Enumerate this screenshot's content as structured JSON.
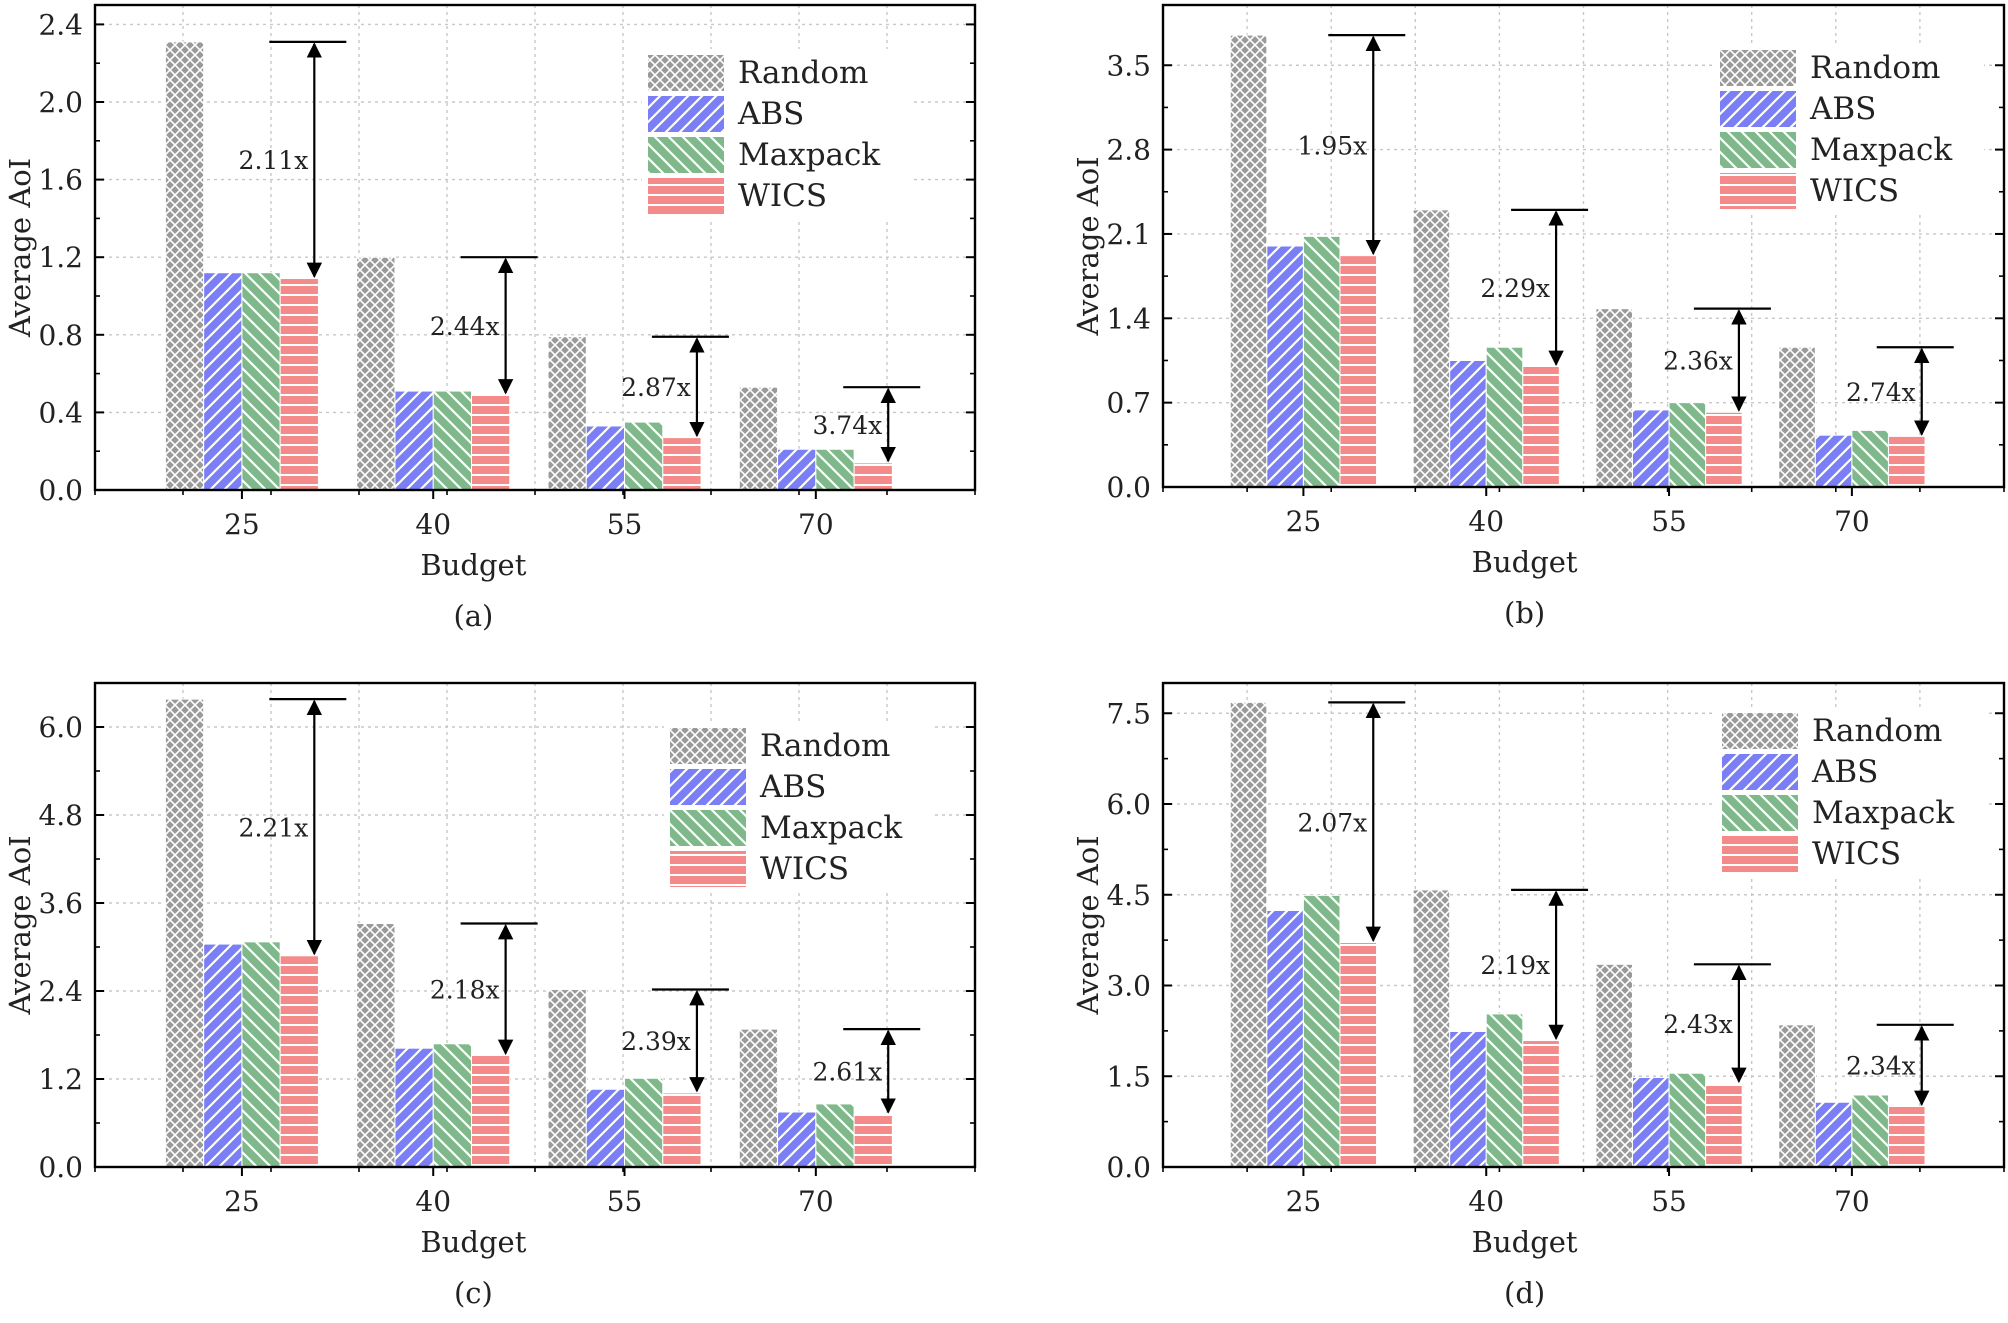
{
  "chart_data": [
    {
      "type": "bar",
      "caption": "(a)",
      "xlabel": "Budget",
      "ylabel": "Average AoI",
      "categories": [
        "25",
        "40",
        "55",
        "70"
      ],
      "ylim": [
        0,
        2.5
      ],
      "yticks": [
        "0.0",
        "0.4",
        "0.8",
        "1.2",
        "1.6",
        "2.0",
        "2.4"
      ],
      "grid": true,
      "legend_position": "top-right",
      "series": [
        {
          "name": "Random",
          "values": [
            2.31,
            1.2,
            0.79,
            0.53
          ]
        },
        {
          "name": "ABS",
          "values": [
            1.12,
            0.51,
            0.33,
            0.21
          ]
        },
        {
          "name": "Maxpack",
          "values": [
            1.12,
            0.51,
            0.35,
            0.21
          ]
        },
        {
          "name": "WICS",
          "values": [
            1.09,
            0.49,
            0.27,
            0.14
          ]
        }
      ],
      "annotations": [
        "2.11x",
        "2.44x",
        "2.87x",
        "3.74x"
      ]
    },
    {
      "type": "bar",
      "caption": "(b)",
      "xlabel": "Budget",
      "ylabel": "Average AoI",
      "categories": [
        "25",
        "40",
        "55",
        "70"
      ],
      "ylim": [
        0,
        4.0
      ],
      "yticks": [
        "0.0",
        "0.7",
        "1.4",
        "2.1",
        "2.8",
        "3.5"
      ],
      "grid": true,
      "legend_position": "top-right",
      "series": [
        {
          "name": "Random",
          "values": [
            3.75,
            2.3,
            1.48,
            1.16
          ]
        },
        {
          "name": "ABS",
          "values": [
            2.0,
            1.05,
            0.64,
            0.43
          ]
        },
        {
          "name": "Maxpack",
          "values": [
            2.08,
            1.16,
            0.7,
            0.47
          ]
        },
        {
          "name": "WICS",
          "values": [
            1.92,
            1.0,
            0.62,
            0.42
          ]
        }
      ],
      "annotations": [
        "1.95x",
        "2.29x",
        "2.36x",
        "2.74x"
      ]
    },
    {
      "type": "bar",
      "caption": "(c)",
      "xlabel": "Budget",
      "ylabel": "Average AoI",
      "categories": [
        "25",
        "40",
        "55",
        "70"
      ],
      "ylim": [
        0,
        6.6
      ],
      "yticks": [
        "0.0",
        "1.2",
        "2.4",
        "3.6",
        "4.8",
        "6.0"
      ],
      "grid": true,
      "legend_position": "top-right",
      "series": [
        {
          "name": "Random",
          "values": [
            6.38,
            3.32,
            2.42,
            1.88
          ]
        },
        {
          "name": "ABS",
          "values": [
            3.04,
            1.62,
            1.06,
            0.75
          ]
        },
        {
          "name": "Maxpack",
          "values": [
            3.07,
            1.68,
            1.21,
            0.86
          ]
        },
        {
          "name": "WICS",
          "values": [
            2.88,
            1.52,
            1.01,
            0.72
          ]
        }
      ],
      "annotations": [
        "2.21x",
        "2.18x",
        "2.39x",
        "2.61x"
      ]
    },
    {
      "type": "bar",
      "caption": "(d)",
      "xlabel": "Budget",
      "ylabel": "Average AoI",
      "categories": [
        "25",
        "40",
        "55",
        "70"
      ],
      "ylim": [
        0,
        8.0
      ],
      "yticks": [
        "0.0",
        "1.5",
        "3.0",
        "4.5",
        "6.0",
        "7.5"
      ],
      "grid": true,
      "legend_position": "top-right",
      "series": [
        {
          "name": "Random",
          "values": [
            7.68,
            4.58,
            3.35,
            2.35
          ]
        },
        {
          "name": "ABS",
          "values": [
            4.24,
            2.24,
            1.48,
            1.07
          ]
        },
        {
          "name": "Maxpack",
          "values": [
            4.49,
            2.53,
            1.55,
            1.19
          ]
        },
        {
          "name": "WICS",
          "values": [
            3.71,
            2.09,
            1.38,
            1.0
          ]
        }
      ],
      "annotations": [
        "2.07x",
        "2.19x",
        "2.43x",
        "2.34x"
      ]
    }
  ],
  "colors": {
    "Random": "#9a9a9a",
    "ABS": "#7b7ff5",
    "Maxpack": "#7fb88a",
    "WICS": "#f48a8a"
  }
}
